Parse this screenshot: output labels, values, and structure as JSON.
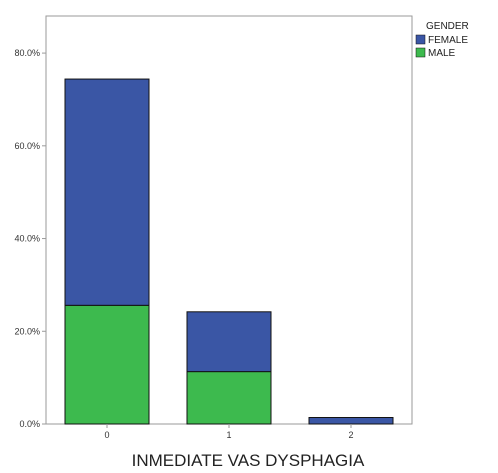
{
  "chart_data": {
    "type": "bar",
    "stacked": true,
    "orientation": "vertical",
    "categories": [
      "0",
      "1",
      "2"
    ],
    "series": [
      {
        "name": "MALE",
        "color": "#3dba4e",
        "values": [
          25.6,
          11.3,
          0.0
        ]
      },
      {
        "name": "FEMALE",
        "color": "#3a56a5",
        "values": [
          48.8,
          12.9,
          1.4
        ]
      }
    ],
    "xlabel": "INMEDIATE VAS DYSPHAGIA",
    "ylabel": "",
    "ylim": [
      0,
      88
    ],
    "yticks": [
      {
        "value": 0,
        "label": "0.0%"
      },
      {
        "value": 20,
        "label": "20.0%"
      },
      {
        "value": 40,
        "label": "40.0%"
      },
      {
        "value": 60,
        "label": "60.0%"
      },
      {
        "value": 80,
        "label": "80.0%"
      }
    ],
    "grid": false,
    "legend": {
      "title": "GENDER",
      "placement": "top-right",
      "entries": [
        {
          "label": "FEMALE",
          "color": "#3a56a5"
        },
        {
          "label": "MALE",
          "color": "#3dba4e"
        }
      ]
    }
  }
}
